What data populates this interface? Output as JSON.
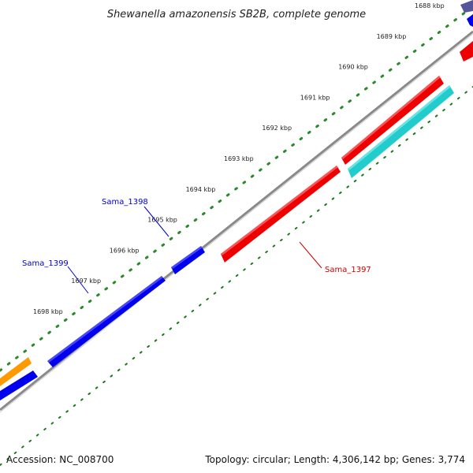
{
  "title": "Shewanella amazonensis SB2B, complete genome",
  "footer": {
    "accession": "Accession: NC_008700",
    "summary": "Topology: circular; Length: 4,306,142 bp; Genes: 3,774"
  },
  "ticks": [
    {
      "label": "1688 kbp",
      "kbp": 1688
    },
    {
      "label": "1689 kbp",
      "kbp": 1689
    },
    {
      "label": "1690 kbp",
      "kbp": 1690
    },
    {
      "label": "1691 kbp",
      "kbp": 1691
    },
    {
      "label": "1692 kbp",
      "kbp": 1692
    },
    {
      "label": "1693 kbp",
      "kbp": 1693
    },
    {
      "label": "1694 kbp",
      "kbp": 1694
    },
    {
      "label": "1695 kbp",
      "kbp": 1695
    },
    {
      "label": "1696 kbp",
      "kbp": 1696
    },
    {
      "label": "1697 kbp",
      "kbp": 1697
    },
    {
      "label": "1698 kbp",
      "kbp": 1698
    }
  ],
  "gene_labels": [
    {
      "label": "Sama_1398",
      "color": "#0000cc"
    },
    {
      "label": "Sama_1399",
      "color": "#0000cc"
    },
    {
      "label": "Sama_1397",
      "color": "#cc0000"
    }
  ],
  "colors": {
    "backbone": "#8a8a8a",
    "tick_dots": "#2a8a2a",
    "tick_dashes": "#1a7a1a",
    "gene_blue": "#0000ee",
    "gene_red": "#ee0000",
    "gene_orange": "#ff9900",
    "gene_cyan": "#22cccc",
    "gene_slate": "#555599"
  }
}
